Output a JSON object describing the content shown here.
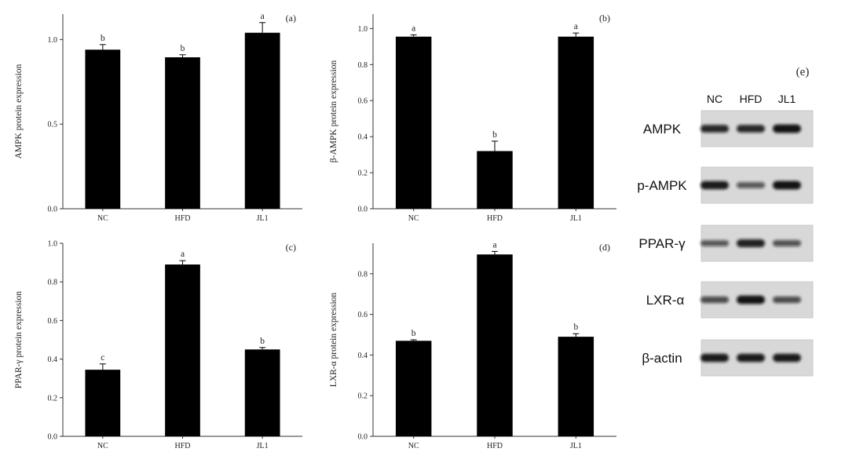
{
  "chart_data": [
    {
      "type": "bar",
      "panel_label": "(a)",
      "ylabel": "AMPK protein expression",
      "categories": [
        "NC",
        "HFD",
        "JL1"
      ],
      "values": [
        0.94,
        0.895,
        1.04
      ],
      "errors": [
        0.03,
        0.015,
        0.06
      ],
      "letters": [
        "b",
        "b",
        "a"
      ],
      "ylim": [
        0,
        1.15
      ],
      "yticks": [
        0.0,
        0.5,
        1.0
      ],
      "yticklabels": [
        "0.0",
        "0.5",
        "1.0"
      ],
      "grid": false
    },
    {
      "type": "bar",
      "panel_label": "(b)",
      "ylabel": "β-AMPK protein expression",
      "categories": [
        "NC",
        "HFD",
        "JL1"
      ],
      "values": [
        0.955,
        0.32,
        0.955
      ],
      "errors": [
        0.01,
        0.055,
        0.02
      ],
      "letters": [
        "a",
        "b",
        "a"
      ],
      "ylim": [
        0,
        1.08
      ],
      "yticks": [
        0.0,
        0.2,
        0.4,
        0.6,
        0.8,
        1.0
      ],
      "yticklabels": [
        "0.0",
        "0.2",
        "0.4",
        "0.6",
        "0.8",
        "1.0"
      ],
      "grid": false
    },
    {
      "type": "bar",
      "panel_label": "(c)",
      "ylabel": "PPAR-γ protein expression",
      "categories": [
        "NC",
        "HFD",
        "JL1"
      ],
      "values": [
        0.345,
        0.89,
        0.45
      ],
      "errors": [
        0.03,
        0.02,
        0.01
      ],
      "letters": [
        "c",
        "a",
        "b"
      ],
      "ylim": [
        0,
        1.0
      ],
      "yticks": [
        0.0,
        0.2,
        0.4,
        0.6,
        0.8,
        1.0
      ],
      "yticklabels": [
        "0.0",
        "0.2",
        "0.4",
        "0.6",
        "0.8",
        "1.0"
      ],
      "grid": false
    },
    {
      "type": "bar",
      "panel_label": "(d)",
      "ylabel": "LXR-α protein expression",
      "categories": [
        "NC",
        "HFD",
        "JL1"
      ],
      "values": [
        0.47,
        0.895,
        0.49
      ],
      "errors": [
        0.005,
        0.015,
        0.015
      ],
      "letters": [
        "b",
        "a",
        "b"
      ],
      "ylim": [
        0,
        0.95
      ],
      "yticks": [
        0.0,
        0.2,
        0.4,
        0.6,
        0.8
      ],
      "yticklabels": [
        "0.0",
        "0.2",
        "0.4",
        "0.6",
        "0.8"
      ],
      "grid": false
    }
  ],
  "western_blot": {
    "panel_label": "(e)",
    "lanes": [
      "NC",
      "HFD",
      "JL1"
    ],
    "rows": [
      {
        "label": "AMPK",
        "intensity": [
          0.8,
          0.8,
          0.95
        ]
      },
      {
        "label": "p-AMPK",
        "intensity": [
          0.9,
          0.45,
          0.95
        ]
      },
      {
        "label": "PPAR-γ",
        "intensity": [
          0.45,
          0.85,
          0.5
        ]
      },
      {
        "label": "LXR-α",
        "intensity": [
          0.55,
          0.95,
          0.55
        ]
      },
      {
        "label": "β-actin",
        "intensity": [
          0.9,
          0.9,
          0.9
        ]
      }
    ]
  },
  "colors": {
    "bar": "#000000",
    "axis": "#333333",
    "text": "#222222",
    "blot_background": "#d8d8d8",
    "band": "#111111"
  }
}
